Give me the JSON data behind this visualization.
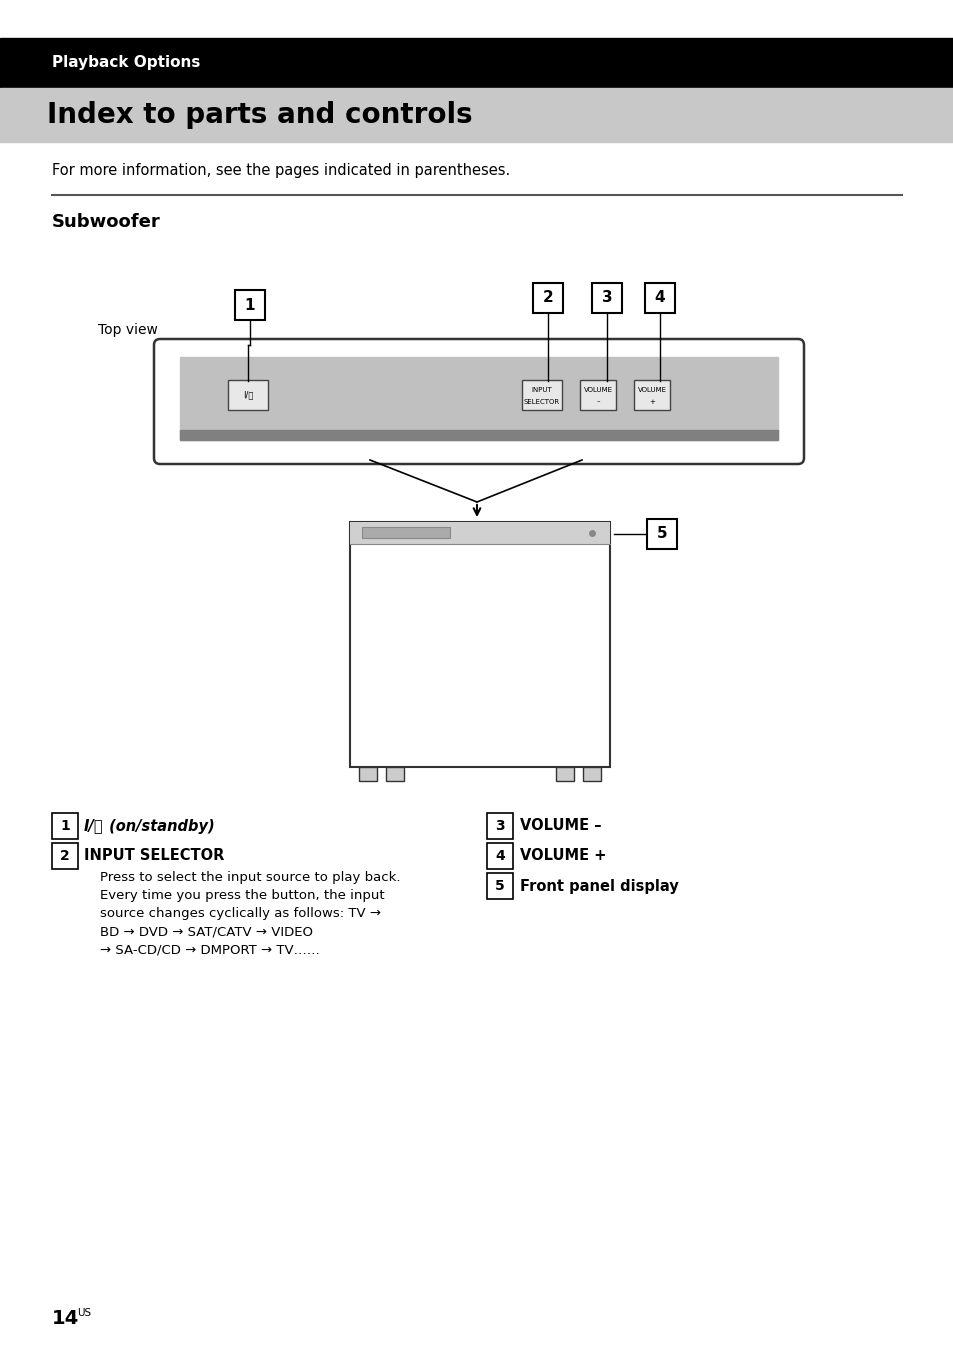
{
  "page_bg": "#ffffff",
  "header_bg": "#000000",
  "subheader_bg": "#c8c8c8",
  "header_text": "Playback Options",
  "header_text_color": "#ffffff",
  "subheader_text": "Index to parts and controls",
  "subheader_text_color": "#000000",
  "intro_text": "For more information, see the pages indicated in parentheses.",
  "section_title": "Subwoofer",
  "top_view_label": "Top view",
  "page_number": "14",
  "page_suffix": "US",
  "label1_italic": "I/⏻",
  "label1_rest": " (on/standby)",
  "label2_title": "INPUT SELECTOR",
  "label2_desc1": "Press to select the input source to play back.",
  "label2_desc2": "Every time you press the button, the input",
  "label2_desc3": "source changes cyclically as follows: TV →",
  "label2_desc4": "BD → DVD → SAT/CATV → VIDEO",
  "label2_desc5": "→ SA-CD/CD → DMPORT → TV……",
  "label3_title": "VOLUME –",
  "label4_title": "VOLUME +",
  "label5_title": "Front panel display",
  "divider_color": "#555555",
  "btn_label1": "I/⏻",
  "btn_label2_line1": "INPUT",
  "btn_label2_line2": "SELECTOR",
  "btn_label3_line1": "VOLUME",
  "btn_label3_line2": "–",
  "btn_label4_line1": "VOLUME",
  "btn_label4_line2": "+"
}
